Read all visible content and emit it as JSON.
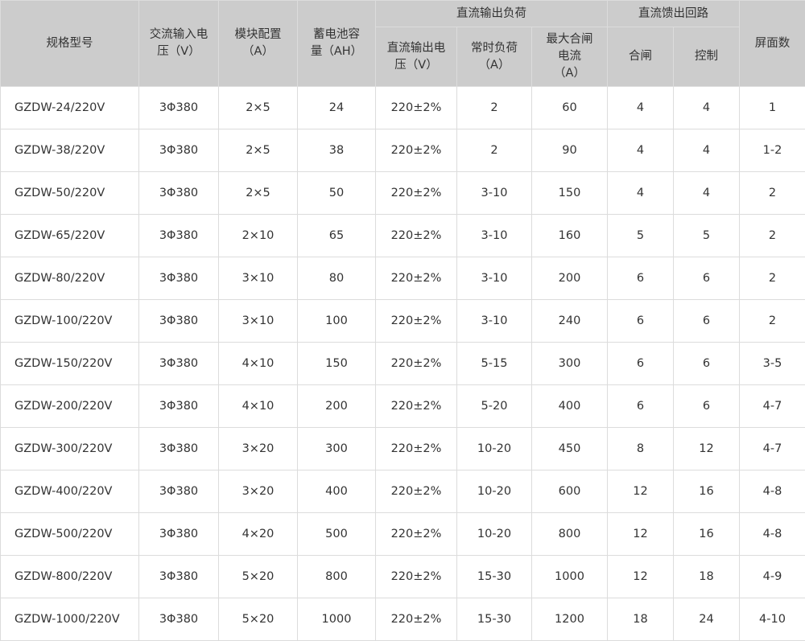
{
  "header": {
    "model": "规格型号",
    "ac_voltage": "交流输入电\n压（V）",
    "module": "模块配置\n（A）",
    "battery": "蓄电池容\n量（AH）",
    "dc_load_group": "直流输出负荷",
    "dc_voltage": "直流输出电\n压（V）",
    "normal_load": "常时负荷\n（A）",
    "max_close": "最大合闸\n电流\n（A）",
    "feeder_group": "直流馈出回路",
    "close": "合闸",
    "control": "控制",
    "panels": "屏面数"
  },
  "rows": [
    [
      "GZDW-24/220V",
      "3Φ380",
      "2×5",
      "24",
      "220±2%",
      "2",
      "60",
      "4",
      "4",
      "1"
    ],
    [
      "GZDW-38/220V",
      "3Φ380",
      "2×5",
      "38",
      "220±2%",
      "2",
      "90",
      "4",
      "4",
      "1-2"
    ],
    [
      "GZDW-50/220V",
      "3Φ380",
      "2×5",
      "50",
      "220±2%",
      "3-10",
      "150",
      "4",
      "4",
      "2"
    ],
    [
      "GZDW-65/220V",
      "3Φ380",
      "2×10",
      "65",
      "220±2%",
      "3-10",
      "160",
      "5",
      "5",
      "2"
    ],
    [
      "GZDW-80/220V",
      "3Φ380",
      "3×10",
      "80",
      "220±2%",
      "3-10",
      "200",
      "6",
      "6",
      "2"
    ],
    [
      "GZDW-100/220V",
      "3Φ380",
      "3×10",
      "100",
      "220±2%",
      "3-10",
      "240",
      "6",
      "6",
      "2"
    ],
    [
      "GZDW-150/220V",
      "3Φ380",
      "4×10",
      "150",
      "220±2%",
      "5-15",
      "300",
      "6",
      "6",
      "3-5"
    ],
    [
      "GZDW-200/220V",
      "3Φ380",
      "4×10",
      "200",
      "220±2%",
      "5-20",
      "400",
      "6",
      "6",
      "4-7"
    ],
    [
      "GZDW-300/220V",
      "3Φ380",
      "3×20",
      "300",
      "220±2%",
      "10-20",
      "450",
      "8",
      "12",
      "4-7"
    ],
    [
      "GZDW-400/220V",
      "3Φ380",
      "3×20",
      "400",
      "220±2%",
      "10-20",
      "600",
      "12",
      "16",
      "4-8"
    ],
    [
      "GZDW-500/220V",
      "3Φ380",
      "4×20",
      "500",
      "220±2%",
      "10-20",
      "800",
      "12",
      "16",
      "4-8"
    ],
    [
      "GZDW-800/220V",
      "3Φ380",
      "5×20",
      "800",
      "220±2%",
      "15-30",
      "1000",
      "12",
      "18",
      "4-9"
    ],
    [
      "GZDW-1000/220V",
      "3Φ380",
      "5×20",
      "1000",
      "220±2%",
      "15-30",
      "1200",
      "18",
      "24",
      "4-10"
    ]
  ]
}
